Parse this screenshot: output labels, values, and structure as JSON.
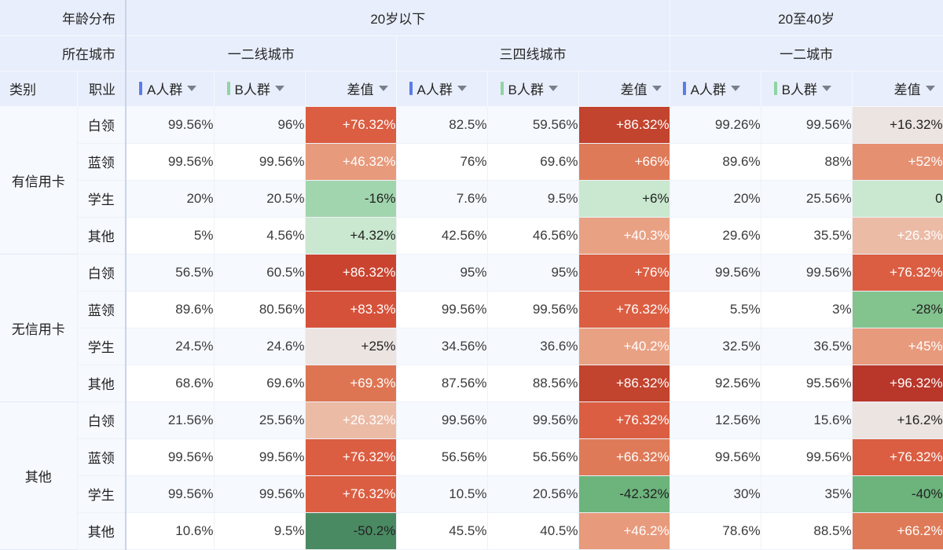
{
  "header": {
    "age_label": "年龄分布",
    "city_label": "所在城市",
    "category_label": "类别",
    "occupation_label": "职业",
    "age_groups": [
      {
        "label": "20岁以下",
        "cities": [
          "一二线城市",
          "三四线城市"
        ]
      },
      {
        "label": "20至40岁",
        "cities": [
          "一二城市"
        ]
      }
    ],
    "metrics": [
      {
        "label": "A人群",
        "bar_color": "#5b7bea"
      },
      {
        "label": "B人群",
        "bar_color": "#8fd4a4"
      },
      {
        "label": "差值",
        "bar_color": null
      }
    ]
  },
  "colors": {
    "header_bg": "#e8eefb",
    "row_bg_odd": "#f6f9fe",
    "row_bg_even": "#ffffff",
    "diff_positive_max": "#b8362a",
    "diff_neutral": "#ebe7e6",
    "diff_negative_max": "#4a8a62"
  },
  "rows": [
    {
      "category": "有信用卡",
      "occupation": "白领",
      "values": [
        {
          "a": "99.56%",
          "b": "96%",
          "diff": "+76.32%",
          "bg": "#db5e42",
          "fg": "#ffffff"
        },
        {
          "a": "82.5%",
          "b": "59.56%",
          "diff": "+86.32%",
          "bg": "#c2432e",
          "fg": "#ffffff"
        },
        {
          "a": "99.26%",
          "b": "99.56%",
          "diff": "+16.32%",
          "bg": "#ece4e1",
          "fg": "#222222"
        }
      ]
    },
    {
      "category": "有信用卡",
      "occupation": "蓝领",
      "values": [
        {
          "a": "99.56%",
          "b": "99.56%",
          "diff": "+46.32%",
          "bg": "#e89a7c",
          "fg": "#ffffff"
        },
        {
          "a": "76%",
          "b": "69.6%",
          "diff": "+66%",
          "bg": "#df7a58",
          "fg": "#ffffff"
        },
        {
          "a": "89.6%",
          "b": "88%",
          "diff": "+52%",
          "bg": "#e69072",
          "fg": "#ffffff"
        }
      ]
    },
    {
      "category": "有信用卡",
      "occupation": "学生",
      "values": [
        {
          "a": "20%",
          "b": "20.5%",
          "diff": "-16%",
          "bg": "#a1d5ae",
          "fg": "#222222"
        },
        {
          "a": "7.6%",
          "b": "9.5%",
          "diff": "+6%",
          "bg": "#c9e8cf",
          "fg": "#222222"
        },
        {
          "a": "20%",
          "b": "25.56%",
          "diff": "0",
          "bg": "#c9e8cf",
          "fg": "#222222"
        }
      ]
    },
    {
      "category": "有信用卡",
      "occupation": "其他",
      "values": [
        {
          "a": "5%",
          "b": "4.56%",
          "diff": "+4.32%",
          "bg": "#c9e8cf",
          "fg": "#222222"
        },
        {
          "a": "42.56%",
          "b": "46.56%",
          "diff": "+40.3%",
          "bg": "#e9a184",
          "fg": "#ffffff"
        },
        {
          "a": "29.6%",
          "b": "35.5%",
          "diff": "+26.3%",
          "bg": "#ebbba6",
          "fg": "#ffffff"
        }
      ]
    },
    {
      "category": "无信用卡",
      "occupation": "白领",
      "values": [
        {
          "a": "56.5%",
          "b": "60.5%",
          "diff": "+86.32%",
          "bg": "#c9432f",
          "fg": "#ffffff"
        },
        {
          "a": "95%",
          "b": "95%",
          "diff": "+76%",
          "bg": "#db5e42",
          "fg": "#ffffff"
        },
        {
          "a": "99.56%",
          "b": "99.56%",
          "diff": "+76.32%",
          "bg": "#db5e42",
          "fg": "#ffffff"
        }
      ]
    },
    {
      "category": "无信用卡",
      "occupation": "蓝领",
      "values": [
        {
          "a": "89.6%",
          "b": "80.56%",
          "diff": "+83.3%",
          "bg": "#d65139",
          "fg": "#ffffff"
        },
        {
          "a": "99.56%",
          "b": "99.56%",
          "diff": "+76.32%",
          "bg": "#db5e42",
          "fg": "#ffffff"
        },
        {
          "a": "5.5%",
          "b": "3%",
          "diff": "-28%",
          "bg": "#83c38e",
          "fg": "#222222"
        }
      ]
    },
    {
      "category": "无信用卡",
      "occupation": "学生",
      "values": [
        {
          "a": "24.5%",
          "b": "24.6%",
          "diff": "+25%",
          "bg": "#ece4e1",
          "fg": "#222222"
        },
        {
          "a": "34.56%",
          "b": "36.6%",
          "diff": "+40.2%",
          "bg": "#e9a184",
          "fg": "#ffffff"
        },
        {
          "a": "32.5%",
          "b": "36.5%",
          "diff": "+45%",
          "bg": "#e89a7c",
          "fg": "#ffffff"
        }
      ]
    },
    {
      "category": "无信用卡",
      "occupation": "其他",
      "values": [
        {
          "a": "68.6%",
          "b": "69.6%",
          "diff": "+69.3%",
          "bg": "#dd7553",
          "fg": "#ffffff"
        },
        {
          "a": "87.56%",
          "b": "88.56%",
          "diff": "+86.32%",
          "bg": "#c2432e",
          "fg": "#ffffff"
        },
        {
          "a": "92.56%",
          "b": "95.56%",
          "diff": "+96.32%",
          "bg": "#b8362a",
          "fg": "#ffffff"
        }
      ]
    },
    {
      "category": "其他",
      "occupation": "白领",
      "values": [
        {
          "a": "21.56%",
          "b": "25.56%",
          "diff": "+26.32%",
          "bg": "#ebbba6",
          "fg": "#ffffff"
        },
        {
          "a": "99.56%",
          "b": "99.56%",
          "diff": "+76.32%",
          "bg": "#db5e42",
          "fg": "#ffffff"
        },
        {
          "a": "12.56%",
          "b": "15.6%",
          "diff": "+16.2%",
          "bg": "#ece4e1",
          "fg": "#222222"
        }
      ]
    },
    {
      "category": "其他",
      "occupation": "蓝领",
      "values": [
        {
          "a": "99.56%",
          "b": "99.56%",
          "diff": "+76.32%",
          "bg": "#db5e42",
          "fg": "#ffffff"
        },
        {
          "a": "56.56%",
          "b": "56.56%",
          "diff": "+66.32%",
          "bg": "#df7a58",
          "fg": "#ffffff"
        },
        {
          "a": "99.56%",
          "b": "99.56%",
          "diff": "+76.32%",
          "bg": "#db5e42",
          "fg": "#ffffff"
        }
      ]
    },
    {
      "category": "其他",
      "occupation": "学生",
      "values": [
        {
          "a": "99.56%",
          "b": "99.56%",
          "diff": "+76.32%",
          "bg": "#db5e42",
          "fg": "#ffffff"
        },
        {
          "a": "10.5%",
          "b": "20.56%",
          "diff": "-42.32%",
          "bg": "#6cb47c",
          "fg": "#222222"
        },
        {
          "a": "30%",
          "b": "35%",
          "diff": "-40%",
          "bg": "#6cb47c",
          "fg": "#222222"
        }
      ]
    },
    {
      "category": "其他",
      "occupation": "其他",
      "values": [
        {
          "a": "10.6%",
          "b": "9.5%",
          "diff": "-50.2%",
          "bg": "#4a8a62",
          "fg": "#222222"
        },
        {
          "a": "45.5%",
          "b": "40.5%",
          "diff": "+46.2%",
          "bg": "#e89a7c",
          "fg": "#ffffff"
        },
        {
          "a": "78.6%",
          "b": "88.5%",
          "diff": "+66.2%",
          "bg": "#df7a58",
          "fg": "#ffffff"
        }
      ]
    }
  ]
}
